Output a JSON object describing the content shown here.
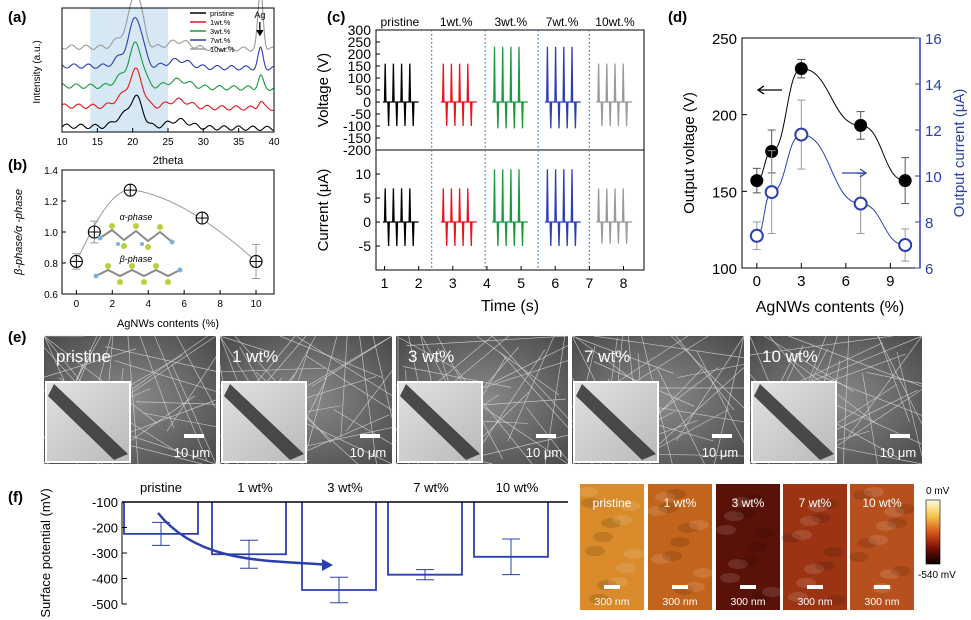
{
  "figure": {
    "panel_labels": [
      "(a)",
      "(b)",
      "(c)",
      "(d)",
      "(e)",
      "(f)"
    ]
  },
  "chart_data": [
    {
      "id": "a",
      "type": "line",
      "title": "",
      "xlabel": "2theta",
      "ylabel": "Intensity (a.u.)",
      "xlim": [
        10,
        40
      ],
      "xticks": [
        10,
        15,
        20,
        25,
        30,
        35,
        40
      ],
      "highlight_range": [
        14,
        25
      ],
      "annotation": "Ag",
      "annotation_x": 38,
      "legend": [
        "pristine",
        "1wt.%",
        "3wt.%",
        "7wt.%",
        "10wt.%"
      ],
      "series_colors": [
        "#000000",
        "#e8141b",
        "#1a9a3c",
        "#2b3fb0",
        "#9a9a9a"
      ],
      "baselines": [
        0.05,
        0.22,
        0.39,
        0.56,
        0.72
      ],
      "peak_height_main": 0.55,
      "peak_height_ag": [
        0.0,
        0.06,
        0.1,
        0.16,
        0.5
      ]
    },
    {
      "id": "b",
      "type": "scatter",
      "xlabel": "AgNWs contents (%)",
      "ylabel": "β-phase/α -phase",
      "xlim": [
        -0.8,
        11
      ],
      "ylim": [
        0.6,
        1.4
      ],
      "xticks": [
        0,
        2,
        4,
        6,
        8,
        10
      ],
      "yticks": [
        0.6,
        0.8,
        1.0,
        1.2,
        1.4
      ],
      "ytick_labels": [
        "0.6",
        "0.8",
        "1.0",
        "1.2",
        "1.4"
      ],
      "x": [
        0,
        1,
        3,
        7,
        10
      ],
      "y": [
        0.81,
        1.0,
        1.27,
        1.09,
        0.81
      ],
      "err": [
        0.05,
        0.07,
        0.03,
        0.03,
        0.11
      ],
      "inset_labels": [
        "α-phase",
        "β-phase"
      ]
    },
    {
      "id": "c",
      "type": "line",
      "xlabel": "Time (s)",
      "xticks": [
        1,
        2,
        3,
        4,
        5,
        6,
        7,
        8
      ],
      "xlim": [
        0.75,
        8.6
      ],
      "groups": [
        "pristine",
        "1wt.%",
        "3wt.%",
        "7wt.%",
        "10wt.%"
      ],
      "group_colors": [
        "#000000",
        "#e8141b",
        "#1a9a3c",
        "#2b3fb0",
        "#9a9a9a"
      ],
      "group_start": [
        1.0,
        2.7,
        4.2,
        5.75,
        7.25
      ],
      "group_dividers": [
        2.38,
        3.95,
        5.5,
        7.0
      ],
      "voltage": {
        "ylabel": "Voltage (V)",
        "ylim": [
          -200,
          300
        ],
        "yticks": [
          -200,
          -150,
          -100,
          -50,
          0,
          50,
          100,
          150,
          200,
          250,
          300
        ],
        "peak_pos": [
          160,
          160,
          230,
          230,
          160
        ],
        "peak_neg": [
          -100,
          -100,
          -110,
          -110,
          -100
        ]
      },
      "current": {
        "ylabel": "Current (μA)",
        "ylim": [
          -10,
          15
        ],
        "yticks": [
          -5,
          0,
          5,
          10
        ],
        "peak_pos": [
          7,
          7,
          11,
          11,
          7
        ],
        "peak_neg": [
          -5,
          -5,
          -5,
          -5,
          -4.5
        ]
      }
    },
    {
      "id": "d",
      "type": "scatter",
      "xlabel": "AgNWs contents (%)",
      "ylabel_left": "Output voltage (V)",
      "ylabel_right": "Output current (μA)",
      "xlim": [
        -1,
        11
      ],
      "xticks": [
        0,
        3,
        6,
        9
      ],
      "ylim_left": [
        100,
        250
      ],
      "yticks_left": [
        100,
        150,
        200,
        250
      ],
      "ylim_right": [
        6,
        16
      ],
      "yticks_right": [
        6,
        8,
        10,
        12,
        14,
        16
      ],
      "series": [
        {
          "name": "Output voltage",
          "axis": "left",
          "color": "#000000",
          "x": [
            0,
            1,
            3,
            7,
            10
          ],
          "y": [
            157,
            176,
            230,
            193,
            157
          ],
          "err": [
            8,
            14,
            6,
            9,
            15
          ]
        },
        {
          "name": "Output current",
          "axis": "right",
          "color": "#2b3fb0",
          "x": [
            0,
            1,
            3,
            7,
            10
          ],
          "y": [
            7.4,
            9.3,
            11.8,
            8.8,
            7.0
          ],
          "err": [
            0.6,
            1.8,
            1.5,
            1.3,
            0.7
          ]
        }
      ]
    },
    {
      "id": "e",
      "type": "table",
      "images": [
        {
          "label": "pristine",
          "scale": "10 μm"
        },
        {
          "label": "1 wt%",
          "scale": "10 μm"
        },
        {
          "label": "3 wt%",
          "scale": "10 μm"
        },
        {
          "label": "7 wt%",
          "scale": "10 μm"
        },
        {
          "label": "10 wt%",
          "scale": "10 μm"
        }
      ]
    },
    {
      "id": "f",
      "type": "bar",
      "ylabel": "Surface potential (mV)",
      "categories": [
        "pristine",
        "1 wt%",
        "3 wt%",
        "7 wt%",
        "10 wt%"
      ],
      "values": [
        -225,
        -305,
        -445,
        -385,
        -315
      ],
      "err": [
        45,
        55,
        50,
        20,
        70
      ],
      "ylim": [
        -500,
        -100
      ],
      "yticks": [
        -100,
        -200,
        -300,
        -400,
        -500
      ],
      "color": "#2b3fb0",
      "maps": [
        {
          "label": "pristine",
          "scale": "300 nm"
        },
        {
          "label": "1 wt%",
          "scale": "300 nm"
        },
        {
          "label": "3 wt%",
          "scale": "300 nm"
        },
        {
          "label": "7 wt%",
          "scale": "300 nm"
        },
        {
          "label": "10 wt%",
          "scale": "300 nm"
        }
      ],
      "colorbar": {
        "max_label": "0 mV",
        "min_label": "-540 mV"
      }
    }
  ]
}
